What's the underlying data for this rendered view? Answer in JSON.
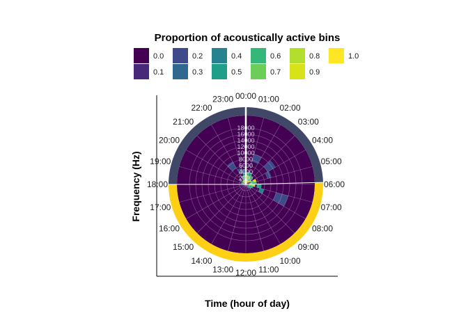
{
  "chart_data": {
    "type": "heatmap",
    "coord": "polar",
    "title": "",
    "xlabel": "Time (hour of day)",
    "ylabel": "Frequency (Hz)",
    "legend": {
      "title": "Proportion of acoustically active bins",
      "placement": "top",
      "palette": "viridis",
      "entries": [
        {
          "label": "0.0",
          "color": "#440154"
        },
        {
          "label": "0.1",
          "color": "#482878"
        },
        {
          "label": "0.2",
          "color": "#3E4A89"
        },
        {
          "label": "0.3",
          "color": "#31688E"
        },
        {
          "label": "0.4",
          "color": "#26828E"
        },
        {
          "label": "0.5",
          "color": "#1F9E89"
        },
        {
          "label": "0.6",
          "color": "#35B779"
        },
        {
          "label": "0.7",
          "color": "#6DCD59"
        },
        {
          "label": "0.8",
          "color": "#B4DE2C"
        },
        {
          "label": "0.9",
          "color": "#D8E219"
        },
        {
          "label": "1.0",
          "color": "#FDE725"
        }
      ]
    },
    "x_ticks": [
      "00:00",
      "01:00",
      "02:00",
      "03:00",
      "04:00",
      "05:00",
      "06:00",
      "07:00",
      "08:00",
      "09:00",
      "10:00",
      "11:00",
      "12:00",
      "13:00",
      "14:00",
      "15:00",
      "16:00",
      "17:00",
      "18:00",
      "19:00",
      "20:00",
      "21:00",
      "22:00",
      "23:00"
    ],
    "y_ticks": [
      2000,
      4000,
      6000,
      8000,
      10000,
      12000,
      14000,
      16000,
      18000
    ],
    "ylim": [
      0,
      22000
    ],
    "daylight_ring": [
      {
        "start_hour": 18.0,
        "end_hour": 5.9,
        "color": "#414766",
        "meaning": "night"
      },
      {
        "start_hour": 5.9,
        "end_hour": 18.0,
        "color": "#FDD016",
        "meaning": "day"
      }
    ],
    "cells": [
      {
        "hour": 4.5,
        "freq_lo": 7000,
        "freq_hi": 8500,
        "value": 0.2
      },
      {
        "hour": 3.5,
        "freq_lo": 8000,
        "freq_hi": 11000,
        "value": 0.2
      },
      {
        "hour": 1.5,
        "freq_lo": 7500,
        "freq_hi": 10000,
        "value": 0.15
      },
      {
        "hour": 21.5,
        "freq_lo": 6000,
        "freq_hi": 8500,
        "value": 0.15
      },
      {
        "hour": 22.5,
        "freq_lo": 3500,
        "freq_hi": 5500,
        "value": 0.15
      },
      {
        "hour": 23.5,
        "freq_lo": 3000,
        "freq_hi": 5000,
        "value": 0.2
      },
      {
        "hour": 7.5,
        "freq_lo": 10000,
        "freq_hi": 14000,
        "value": 0.2
      },
      {
        "hour": 7.5,
        "freq_lo": 4500,
        "freq_hi": 6000,
        "value": 0.4
      },
      {
        "hour": 6.5,
        "freq_lo": 3500,
        "freq_hi": 5000,
        "value": 0.5
      },
      {
        "hour": 20.5,
        "freq_lo": 1000,
        "freq_hi": 2500,
        "value": 0.3
      },
      {
        "hour": 22.5,
        "freq_lo": 1500,
        "freq_hi": 3000,
        "value": 0.5
      },
      {
        "hour": 23.5,
        "freq_lo": 1500,
        "freq_hi": 3000,
        "value": 0.7
      },
      {
        "hour": 0.5,
        "freq_lo": 1500,
        "freq_hi": 3000,
        "value": 0.8
      },
      {
        "hour": 1.5,
        "freq_lo": 1500,
        "freq_hi": 3000,
        "value": 0.7
      },
      {
        "hour": 2.5,
        "freq_lo": 1500,
        "freq_hi": 3000,
        "value": 0.6
      },
      {
        "hour": 0.5,
        "freq_lo": 3000,
        "freq_hi": 4000,
        "value": 0.6
      },
      {
        "hour": 1.5,
        "freq_lo": 3000,
        "freq_hi": 4000,
        "value": 0.5
      },
      {
        "hour": 23.5,
        "freq_lo": 3000,
        "freq_hi": 4000,
        "value": 0.4
      },
      {
        "hour": 5.5,
        "freq_lo": 2000,
        "freq_hi": 3500,
        "value": 0.6
      },
      {
        "hour": 6.5,
        "freq_lo": 2000,
        "freq_hi": 3000,
        "value": 0.8
      },
      {
        "hour": 4.5,
        "freq_lo": 2500,
        "freq_hi": 3500,
        "value": 0.9
      },
      {
        "hour": 4.5,
        "freq_lo": 1500,
        "freq_hi": 2500,
        "value": 0.6
      },
      {
        "hour": 5.5,
        "freq_lo": 1000,
        "freq_hi": 2000,
        "value": 0.8
      },
      {
        "hour": 6.5,
        "freq_lo": 1000,
        "freq_hi": 2000,
        "value": 0.7
      },
      {
        "hour": 3.5,
        "freq_lo": 1000,
        "freq_hi": 2000,
        "value": 0.8
      },
      {
        "hour": 7.5,
        "freq_lo": 1500,
        "freq_hi": 2500,
        "value": 0.5
      },
      {
        "hour": 7.5,
        "freq_lo": 500,
        "freq_hi": 1500,
        "value": 0.6
      },
      {
        "hour": 8.5,
        "freq_lo": 1000,
        "freq_hi": 2000,
        "value": 0.5
      },
      {
        "hour": 19.5,
        "freq_lo": 500,
        "freq_hi": 1500,
        "value": 0.6
      },
      {
        "hour": 20.5,
        "freq_lo": 500,
        "freq_hi": 1000,
        "value": 0.7
      },
      {
        "hour": 21.5,
        "freq_lo": 500,
        "freq_hi": 1500,
        "value": 0.9
      },
      {
        "hour": 22.5,
        "freq_lo": 500,
        "freq_hi": 1500,
        "value": 0.8
      },
      {
        "hour": 23.5,
        "freq_lo": 500,
        "freq_hi": 1500,
        "value": 0.9
      },
      {
        "hour": 0.5,
        "freq_lo": 500,
        "freq_hi": 1500,
        "value": 1.0
      },
      {
        "hour": 1.5,
        "freq_lo": 500,
        "freq_hi": 1500,
        "value": 0.9
      },
      {
        "hour": 2.5,
        "freq_lo": 500,
        "freq_hi": 1500,
        "value": 0.8
      },
      {
        "hour": 18.5,
        "freq_lo": 500,
        "freq_hi": 1500,
        "value": 0.5
      },
      {
        "hour": 9.5,
        "freq_lo": 500,
        "freq_hi": 1500,
        "value": 0.4
      }
    ]
  }
}
